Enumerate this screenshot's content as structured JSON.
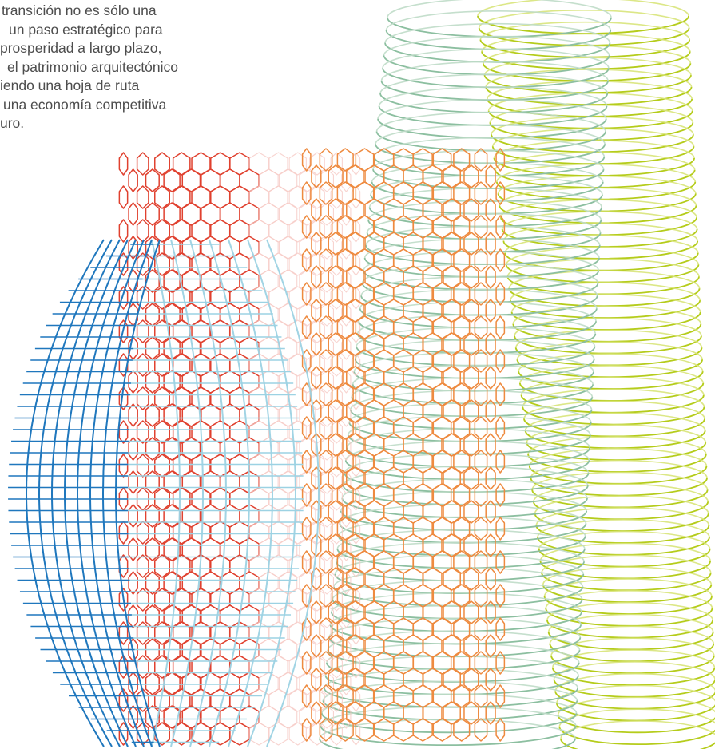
{
  "intro_text": {
    "lines": [
      "transición no es sólo una",
      "un paso estratégico para",
      "prosperidad a largo plazo,",
      "el patrimonio arquitectónico",
      "iendo una hoja de ruta",
      "una economía competitiva",
      "uro."
    ]
  },
  "illustration": {
    "cylinders": [
      {
        "name": "blue-grid-cylinder",
        "pattern": "grid",
        "colors": {
          "front": "#1f77bd",
          "back": "#9cd2e3"
        }
      },
      {
        "name": "red-hex-cylinder",
        "pattern": "hexagon",
        "colors": {
          "front": "#e0412f",
          "back": "#f6c9c4"
        }
      },
      {
        "name": "orange-hex-cylinder",
        "pattern": "hexagon",
        "colors": {
          "front": "#ee8a3f",
          "back": "#f7ceaa"
        }
      },
      {
        "name": "sage-ellipse-cylinder",
        "pattern": "ellipses",
        "colors": {
          "front": "#8cbfa0",
          "back": "#bfdcc8"
        }
      },
      {
        "name": "lime-ellipse-cylinder",
        "pattern": "ellipses",
        "colors": {
          "front": "#b5cc1b",
          "back": "#d8e47a"
        }
      }
    ]
  }
}
